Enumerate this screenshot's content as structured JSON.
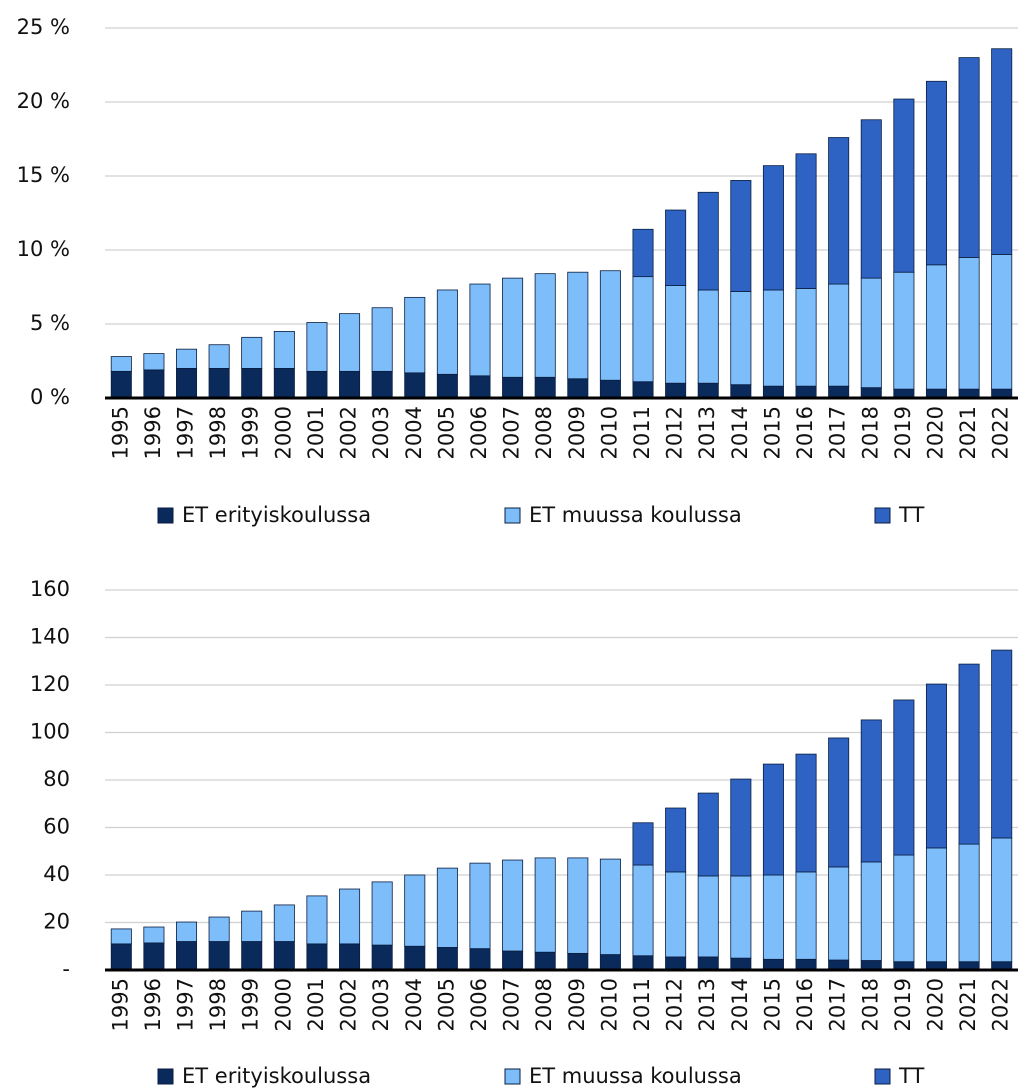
{
  "chart_data": [
    {
      "type": "bar",
      "stacked": true,
      "categories": [
        "1995",
        "1996",
        "1997",
        "1998",
        "1999",
        "2000",
        "2001",
        "2002",
        "2003",
        "2004",
        "2005",
        "2006",
        "2007",
        "2008",
        "2009",
        "2010",
        "2011",
        "2012",
        "2013",
        "2014",
        "2015",
        "2016",
        "2017",
        "2018",
        "2019",
        "2020",
        "2021",
        "2022"
      ],
      "series": [
        {
          "name": "ET erityiskoulussa",
          "color": "#0b2a5c",
          "values": [
            1.8,
            1.9,
            2.0,
            2.0,
            2.0,
            2.0,
            1.8,
            1.8,
            1.8,
            1.7,
            1.6,
            1.5,
            1.4,
            1.4,
            1.3,
            1.2,
            1.1,
            1.0,
            1.0,
            0.9,
            0.8,
            0.8,
            0.8,
            0.7,
            0.6,
            0.6,
            0.6,
            0.6
          ]
        },
        {
          "name": "ET muussa koulussa",
          "color": "#7dbdfa",
          "values": [
            1.0,
            1.1,
            1.3,
            1.6,
            2.1,
            2.5,
            3.3,
            3.9,
            4.3,
            5.1,
            5.7,
            6.2,
            6.7,
            7.0,
            7.2,
            7.4,
            7.1,
            6.6,
            6.3,
            6.3,
            6.5,
            6.6,
            6.9,
            7.4,
            7.9,
            8.4,
            8.9,
            9.1
          ]
        },
        {
          "name": "TT",
          "color": "#2e63c4",
          "values": [
            0,
            0,
            0,
            0,
            0,
            0,
            0,
            0,
            0,
            0,
            0,
            0,
            0,
            0,
            0,
            0,
            3.2,
            5.1,
            6.6,
            7.5,
            8.4,
            9.1,
            9.9,
            10.7,
            11.7,
            12.4,
            13.5,
            13.9
          ]
        }
      ],
      "ylim": [
        0,
        25
      ],
      "yticks": [
        {
          "value": 0,
          "label": "0 %"
        },
        {
          "value": 5,
          "label": "5 %"
        },
        {
          "value": 10,
          "label": "10 %"
        },
        {
          "value": 15,
          "label": "15 %"
        },
        {
          "value": 20,
          "label": "20 %"
        },
        {
          "value": 25,
          "label": "25 %"
        }
      ],
      "grid": true,
      "legend": "bottom"
    },
    {
      "type": "bar",
      "stacked": true,
      "categories": [
        "1995",
        "1996",
        "1997",
        "1998",
        "1999",
        "2000",
        "2001",
        "2002",
        "2003",
        "2004",
        "2005",
        "2006",
        "2007",
        "2008",
        "2009",
        "2010",
        "2011",
        "2012",
        "2013",
        "2014",
        "2015",
        "2016",
        "2017",
        "2018",
        "2019",
        "2020",
        "2021",
        "2022"
      ],
      "series": [
        {
          "name": "ET erityiskoulussa",
          "color": "#0b2a5c",
          "values": [
            11,
            11.4,
            12,
            12,
            12,
            12,
            11,
            11,
            10.5,
            10,
            9.5,
            9,
            8,
            7.5,
            7,
            6.5,
            6,
            5.5,
            5.5,
            5,
            4.5,
            4.5,
            4.2,
            4,
            3.5,
            3.5,
            3.5,
            3.5
          ]
        },
        {
          "name": "ET muussa koulussa",
          "color": "#7dbdfa",
          "values": [
            6.3,
            6.7,
            8.2,
            10.3,
            12.8,
            15.4,
            20.2,
            23.1,
            26.6,
            30,
            33.4,
            36,
            38.3,
            39.7,
            40.2,
            40.2,
            38.2,
            35.8,
            34.1,
            34.6,
            35.5,
            36.8,
            39.2,
            41.5,
            44.9,
            47.9,
            49.5,
            52.1
          ]
        },
        {
          "name": "TT",
          "color": "#2e63c4",
          "values": [
            0,
            0,
            0,
            0,
            0,
            0,
            0,
            0,
            0,
            0,
            0,
            0,
            0,
            0,
            0,
            0,
            17.8,
            26.9,
            34.9,
            40.8,
            46.7,
            49.6,
            54.3,
            59.8,
            65.3,
            69,
            75.8,
            79.1
          ]
        }
      ],
      "ylim": [
        0,
        160
      ],
      "yticks": [
        {
          "value": 0,
          "label": "-"
        },
        20,
        40,
        60,
        80,
        100,
        120,
        140,
        160
      ],
      "grid": true,
      "legend": "bottom"
    }
  ]
}
